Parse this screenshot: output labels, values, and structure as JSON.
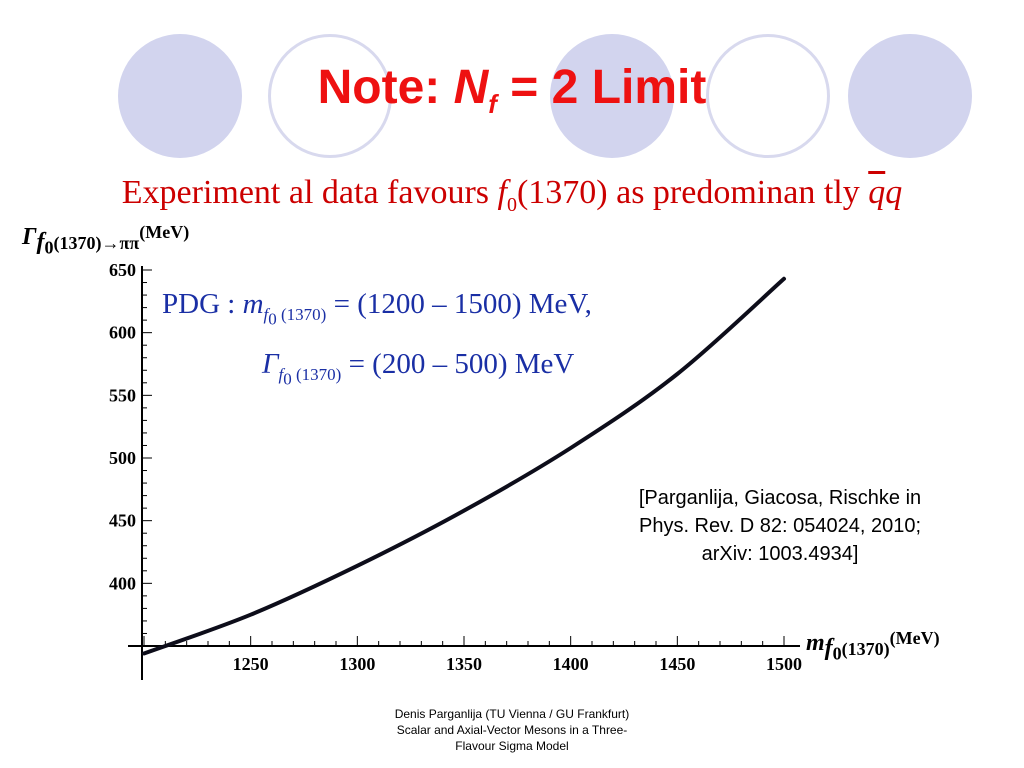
{
  "slide": {
    "title": {
      "prefix": "Note: ",
      "var": "N",
      "sub": "f",
      "suffix": " = 2 Limit"
    },
    "subtitle": {
      "text1": "Experiment al data favours ",
      "f": "f",
      "f_sub": "0",
      "text2": "(1370) as predominan tly ",
      "q1": "q",
      "q2": "q"
    },
    "pdg": {
      "line1": {
        "prefix": "PDG : ",
        "m": "m",
        "sub": "f",
        "sub2": "0",
        "sub3": " (1370)",
        "value": " = (1200 – 1500) MeV,"
      },
      "line2": {
        "gamma": "Γ",
        "sub": "f",
        "sub2": "0",
        "sub3": " (1370)",
        "value": " = (200 – 500) MeV"
      }
    },
    "reference": [
      "[Parganlija, Giacosa, Rischke in",
      "Phys. Rev. D 82: 054024, 2010;",
      "arXiv: 1003.4934]"
    ],
    "footer": [
      "Denis Parganlija (TU Vienna / GU Frankfurt)",
      "Scalar and Axial-Vector Mesons in a Three-",
      "Flavour Sigma Model"
    ],
    "colors": {
      "title": "#ee1111",
      "subtitle": "#cc0000",
      "pdg": "#1a2fa5",
      "circle_fill": "#d2d4ee",
      "circle_outline": "#d8d9ee"
    }
  },
  "chart_data": {
    "type": "line",
    "ylabel": {
      "symbol": "Γ",
      "sub": "f",
      "sub2": "0",
      "sub3": "(1370)→ππ",
      "unit": "(MeV)"
    },
    "xlabel": {
      "symbol": "m",
      "sub": "f",
      "sub2": "0",
      "sub3": "(1370)",
      "unit": "(MeV)"
    },
    "x_ticks": [
      1250,
      1300,
      1350,
      1400,
      1450,
      1500
    ],
    "y_ticks": [
      400,
      450,
      500,
      550,
      600,
      650
    ],
    "xlim": [
      1200,
      1500
    ],
    "ylim": [
      350,
      650
    ],
    "grid": false,
    "series": [
      {
        "x": [
          1200,
          1250,
          1300,
          1350,
          1400,
          1450,
          1500
        ],
        "y": [
          344,
          375,
          414,
          458,
          508,
          567,
          643
        ]
      }
    ]
  }
}
